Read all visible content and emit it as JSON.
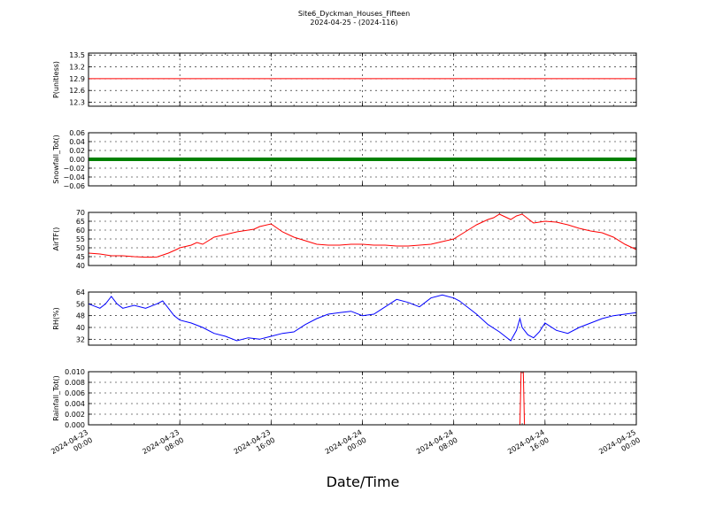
{
  "title": "Site6_Dyckman_Houses_Fifteen",
  "subtitle": "2024-04-25 - (2024-116)",
  "xlabel": "Date/Time",
  "x_ticks": [
    "2024-04-23\n00:00",
    "2024-04-23\n08:00",
    "2024-04-23\n16:00",
    "2024-04-24\n00:00",
    "2024-04-24\n08:00",
    "2024-04-24\n16:00",
    "2024-04-25\n00:00"
  ],
  "chart_data": [
    {
      "type": "line",
      "ylabel": "P(unitless)",
      "ylim": [
        12.2,
        13.55
      ],
      "yticks": [
        "12.3",
        "12.6",
        "12.9",
        "13.2",
        "13.5"
      ],
      "grid": true,
      "series": [
        {
          "color": "#ff0000",
          "x": [
            0,
            48
          ],
          "y": [
            12.9,
            12.9
          ]
        }
      ]
    },
    {
      "type": "line",
      "ylabel": "Snowfall_Tot()",
      "ylim": [
        -0.06,
        0.06
      ],
      "yticks": [
        "−0.06",
        "−0.04",
        "−0.02",
        "0.00",
        "0.02",
        "0.04",
        "0.06"
      ],
      "grid": true,
      "series": [
        {
          "color": "#008000",
          "marker": "dots",
          "x": [
            0,
            48
          ],
          "y": [
            0,
            0
          ]
        }
      ]
    },
    {
      "type": "line",
      "ylabel": "AirTF()",
      "ylim": [
        40,
        70
      ],
      "yticks": [
        "40",
        "45",
        "50",
        "55",
        "60",
        "65",
        "70"
      ],
      "grid": true,
      "series": [
        {
          "color": "#ff0000",
          "x": [
            0,
            1,
            2,
            3,
            4,
            5,
            6,
            7,
            7.7,
            8,
            9,
            9.5,
            10,
            11,
            12,
            13,
            14,
            14.5,
            15,
            16,
            17,
            18,
            19,
            20,
            21,
            22,
            23,
            24,
            25,
            26,
            27,
            28,
            29,
            30,
            31,
            32,
            33,
            34,
            35,
            35.5,
            36,
            37,
            37.5,
            38,
            39,
            40,
            41,
            42,
            43,
            44,
            45,
            46,
            47,
            48
          ],
          "y": [
            47,
            46.5,
            45.5,
            45.5,
            45,
            44.7,
            44.8,
            47,
            49,
            50,
            51.5,
            53,
            52,
            56,
            57.5,
            59,
            60,
            60.5,
            62,
            63.5,
            59,
            56,
            54,
            52,
            51.5,
            51.5,
            52,
            52,
            51.5,
            51.5,
            51,
            51,
            51.5,
            52,
            53.5,
            55,
            59,
            63,
            66,
            67,
            69,
            66,
            68,
            69,
            64,
            65,
            64.5,
            63,
            61,
            59.5,
            58.5,
            56,
            52,
            49
          ]
        }
      ]
    },
    {
      "type": "line",
      "ylabel": "RH(%)",
      "ylim": [
        28,
        64
      ],
      "yticks": [
        "32",
        "40",
        "48",
        "56",
        "64"
      ],
      "grid": true,
      "series": [
        {
          "color": "#0000ff",
          "x": [
            0,
            1,
            1.5,
            2,
            2.5,
            3,
            4,
            5,
            6,
            6.5,
            7,
            7.5,
            8,
            9,
            10,
            11,
            12,
            13,
            14,
            15,
            16,
            17,
            18,
            19,
            20,
            21,
            22,
            23,
            24,
            25,
            26,
            27,
            28,
            29,
            30,
            31,
            32,
            32.5,
            33,
            34,
            35,
            36,
            37,
            37.5,
            37.8,
            38,
            38.5,
            39,
            39.5,
            40,
            41,
            42,
            43,
            44,
            45,
            46,
            47,
            48
          ],
          "y": [
            56,
            53,
            56,
            61,
            56,
            53,
            55,
            53,
            56,
            58,
            53,
            48,
            45,
            43,
            40,
            36,
            34,
            31,
            33,
            32,
            34,
            36,
            37,
            42,
            46,
            49,
            50,
            51,
            48,
            49,
            54,
            59,
            57,
            54,
            60,
            62,
            60,
            58,
            55,
            49,
            42,
            37,
            31,
            38,
            46,
            40,
            35,
            33,
            37,
            43,
            38,
            36,
            40,
            43,
            46,
            48,
            49,
            50
          ]
        }
      ]
    },
    {
      "type": "line",
      "ylabel": "Rainfall_Tot()",
      "ylim": [
        0,
        0.01
      ],
      "yticks": [
        "0.000",
        "0.002",
        "0.004",
        "0.006",
        "0.008",
        "0.010"
      ],
      "grid": true,
      "series": [
        {
          "color": "#ff0000",
          "x": [
            0,
            37.8,
            37.9,
            38.1,
            38.2,
            48
          ],
          "y": [
            0,
            0,
            0.01,
            0.01,
            0,
            0
          ]
        }
      ]
    }
  ]
}
